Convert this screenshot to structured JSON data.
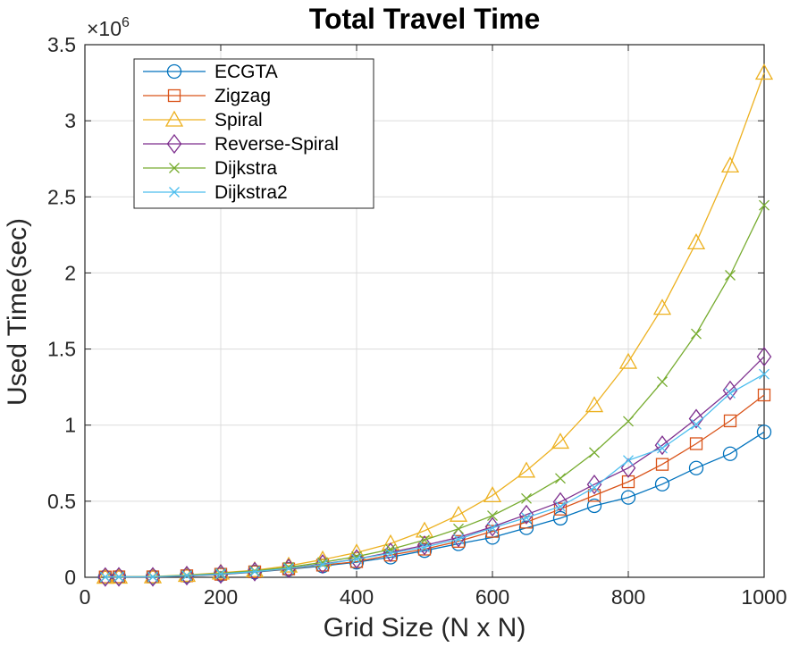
{
  "chart_data": {
    "type": "line",
    "title": "Total Travel Time",
    "xlabel": "Grid Size (N x N)",
    "ylabel": "Used Time(sec)",
    "y_exponent_label": "×10",
    "y_exponent_power": "6",
    "y_scale": 1000000,
    "xlim": [
      0,
      1000
    ],
    "ylim": [
      0,
      3500000
    ],
    "xticks": [
      0,
      200,
      400,
      600,
      800,
      1000
    ],
    "xtick_labels": [
      "0",
      "200",
      "400",
      "600",
      "800",
      "1000"
    ],
    "yticks": [
      0,
      500000,
      1000000,
      1500000,
      2000000,
      2500000,
      3000000,
      3500000
    ],
    "ytick_labels": [
      "0",
      "0.5",
      "1",
      "1.5",
      "2",
      "2.5",
      "3",
      "3.5"
    ],
    "grid": true,
    "legend_position": "top-left",
    "x": [
      30,
      50,
      100,
      150,
      200,
      250,
      300,
      350,
      400,
      450,
      500,
      550,
      600,
      650,
      700,
      750,
      800,
      850,
      900,
      950,
      1000
    ],
    "series": [
      {
        "name": "ECGTA",
        "color": "#0072BD",
        "marker": "circle",
        "values": [
          2000,
          3000,
          3000,
          9000,
          19000,
          34000,
          53000,
          74000,
          99000,
          132000,
          175000,
          220000,
          262000,
          325000,
          388000,
          470000,
          525000,
          612000,
          718000,
          812000,
          955000
        ]
      },
      {
        "name": "Zigzag",
        "color": "#D95319",
        "marker": "square",
        "values": [
          2000,
          3000,
          3000,
          10000,
          20000,
          36000,
          55000,
          80000,
          103000,
          146000,
          185000,
          236000,
          302000,
          362000,
          448000,
          538000,
          628000,
          742000,
          878000,
          1028000,
          1198000
        ]
      },
      {
        "name": "Spiral",
        "color": "#EDB120",
        "marker": "triangle",
        "values": [
          2000,
          3000,
          5000,
          15000,
          30000,
          46000,
          76000,
          116000,
          162000,
          222000,
          306000,
          410000,
          538000,
          700000,
          890000,
          1130000,
          1415000,
          1770000,
          2200000,
          2705000,
          3315000
        ]
      },
      {
        "name": "Reverse-Spiral",
        "color": "#7E2F8E",
        "marker": "diamond",
        "values": [
          2000,
          3000,
          3000,
          11000,
          22000,
          37000,
          59000,
          87000,
          120000,
          164000,
          210000,
          262000,
          332000,
          412000,
          495000,
          610000,
          718000,
          868000,
          1042000,
          1228000,
          1450000
        ]
      },
      {
        "name": "Dijkstra",
        "color": "#77AC30",
        "marker": "x",
        "values": [
          2000,
          3000,
          4000,
          13000,
          26000,
          42000,
          66000,
          98000,
          136000,
          184000,
          245000,
          318000,
          405000,
          518000,
          650000,
          820000,
          1025000,
          1285000,
          1600000,
          1985000,
          2445000
        ]
      },
      {
        "name": "Dijkstra2",
        "color": "#4DBEEE",
        "marker": "x",
        "values": [
          2000,
          3000,
          3000,
          11000,
          22000,
          37000,
          58000,
          84000,
          120000,
          158000,
          198000,
          250000,
          325000,
          392000,
          465000,
          590000,
          768000,
          848000,
          1005000,
          1210000,
          1335000
        ]
      }
    ]
  }
}
